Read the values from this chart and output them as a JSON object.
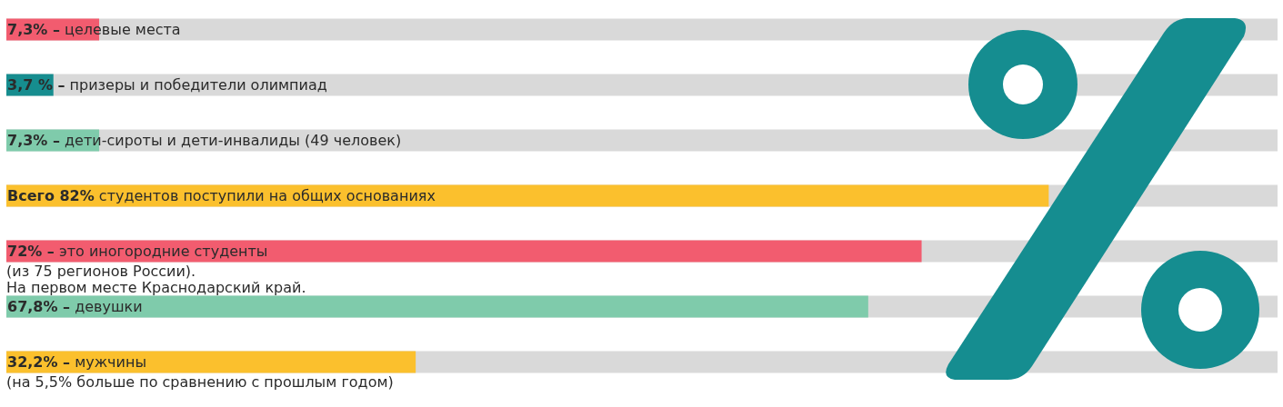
{
  "chart_data": {
    "type": "bar",
    "orientation": "horizontal",
    "categories": [
      "целевые места",
      "призеры и победители олимпиад",
      "дети-сироты и дети-инвалиды (49 человек)",
      "студентов поступили на общих основаниях",
      "это иногородние студенты",
      "девушки",
      "мужчины"
    ],
    "values": [
      7.3,
      3.7,
      7.3,
      82,
      72,
      67.8,
      32.2
    ],
    "colors": [
      "#f25c6f",
      "#168d8f",
      "#7fcbab",
      "#fbc02d",
      "#f25c6f",
      "#7fcbab",
      "#fbc02d"
    ],
    "value_labels": [
      "7,3% –",
      "3,7 % –",
      "7,3% –",
      "Всего 82%",
      "72% –",
      "67,8% –",
      "32,2% –"
    ],
    "xlim": [
      0,
      100
    ],
    "annotations": [
      "(из 75 регионов России).\nНа первом месте Краснодарский край.",
      "(на 5,5% больше по сравнению с прошлым годом)"
    ]
  }
}
